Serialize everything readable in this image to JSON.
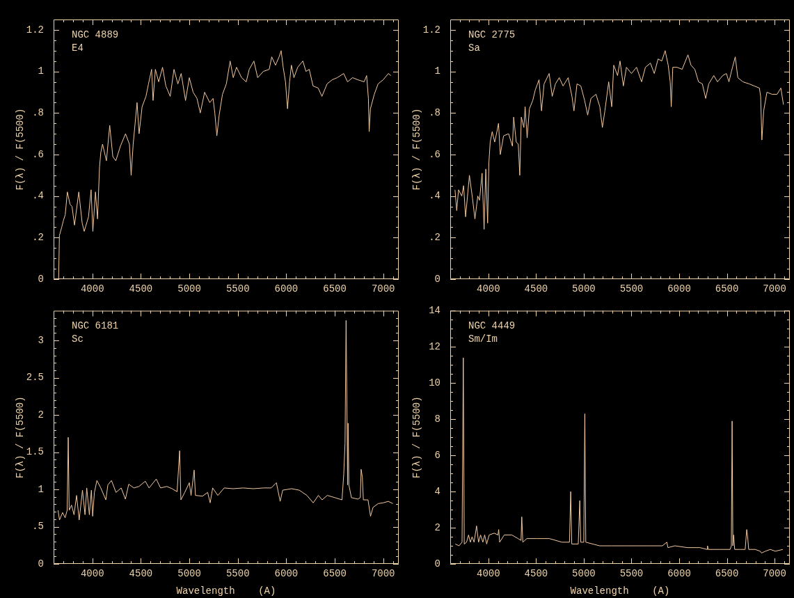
{
  "chart_data": [
    {
      "type": "line",
      "title": "NGC 4889",
      "subtitle": "E4",
      "ylabel": "F(λ) / F(5500)",
      "color": "#f3c9a0",
      "xlim": [
        3600,
        7160
      ],
      "xticks": [
        {
          "value": 3700,
          "label": null
        },
        {
          "value": 3800,
          "label": null
        },
        {
          "value": 3900,
          "label": null
        },
        4000,
        {
          "value": 4100,
          "label": null
        },
        {
          "value": 4200,
          "label": null
        },
        {
          "value": 4300,
          "label": null
        },
        {
          "value": 4400,
          "label": null
        },
        4500,
        {
          "value": 4600,
          "label": null
        },
        {
          "value": 4700,
          "label": null
        },
        {
          "value": 4800,
          "label": null
        },
        {
          "value": 4900,
          "label": null
        },
        5000,
        {
          "value": 5100,
          "label": null
        },
        {
          "value": 5200,
          "label": null
        },
        {
          "value": 5300,
          "label": null
        },
        {
          "value": 5400,
          "label": null
        },
        5500,
        {
          "value": 5600,
          "label": null
        },
        {
          "value": 5700,
          "label": null
        },
        {
          "value": 5800,
          "label": null
        },
        {
          "value": 5900,
          "label": null
        },
        6000,
        {
          "value": 6100,
          "label": null
        },
        {
          "value": 6200,
          "label": null
        },
        {
          "value": 6300,
          "label": null
        },
        {
          "value": 6400,
          "label": null
        },
        6500,
        {
          "value": 6600,
          "label": null
        },
        {
          "value": 6700,
          "label": null
        },
        {
          "value": 6800,
          "label": null
        },
        {
          "value": 6900,
          "label": null
        },
        7000,
        {
          "value": 7100,
          "label": null
        }
      ],
      "ylim": [
        0,
        1.25
      ],
      "yticks": [
        0,
        {
          "value": 0.05,
          "label": null
        },
        {
          "value": 0.1,
          "label": null
        },
        {
          "value": 0.15,
          "label": null
        },
        {
          "value": 0.2,
          "label": ".2"
        },
        {
          "value": 0.25,
          "label": null
        },
        {
          "value": 0.3,
          "label": null
        },
        {
          "value": 0.35,
          "label": null
        },
        {
          "value": 0.4,
          "label": ".4"
        },
        {
          "value": 0.45,
          "label": null
        },
        {
          "value": 0.5,
          "label": null
        },
        {
          "value": 0.55,
          "label": null
        },
        {
          "value": 0.6,
          "label": ".6"
        },
        {
          "value": 0.65,
          "label": null
        },
        {
          "value": 0.7,
          "label": null
        },
        {
          "value": 0.75,
          "label": null
        },
        {
          "value": 0.8,
          "label": ".8"
        },
        {
          "value": 0.85,
          "label": null
        },
        {
          "value": 0.9,
          "label": null
        },
        {
          "value": 0.95,
          "label": null
        },
        1,
        {
          "value": 1.05,
          "label": null
        },
        {
          "value": 1.1,
          "label": null
        },
        {
          "value": 1.15,
          "label": null
        },
        1.2
      ],
      "x": [
        3652,
        3660,
        3684,
        3700,
        3720,
        3742,
        3770,
        3790,
        3816,
        3860,
        3895,
        3916,
        3960,
        3987,
        4005,
        4032,
        4053,
        4074,
        4087,
        4105,
        4145,
        4179,
        4211,
        4242,
        4289,
        4342,
        4382,
        4400,
        4421,
        4461,
        4482,
        4513,
        4553,
        4579,
        4611,
        4626,
        4650,
        4684,
        4724,
        4758,
        4803,
        4842,
        4882,
        4916,
        4961,
        5000,
        5039,
        5079,
        5113,
        5158,
        5211,
        5245,
        5263,
        5284,
        5308,
        5342,
        5382,
        5421,
        5453,
        5487,
        5539,
        5587,
        5618,
        5666,
        5705,
        5763,
        5824,
        5850,
        5889,
        5926,
        5947,
        5968,
        5992,
        6013,
        6034,
        6053,
        6079,
        6118,
        6171,
        6203,
        6237,
        6276,
        6329,
        6368,
        6421,
        6474,
        6526,
        6592,
        6632,
        6684,
        6737,
        6803,
        6829,
        6847,
        6855,
        6868,
        6908,
        6947,
        7000,
        7053,
        7079
      ],
      "values": [
        0,
        0.21,
        0.25,
        0.28,
        0.31,
        0.42,
        0.36,
        0.35,
        0.26,
        0.42,
        0.27,
        0.23,
        0.3,
        0.43,
        0.23,
        0.42,
        0.29,
        0.54,
        0.61,
        0.65,
        0.57,
        0.74,
        0.59,
        0.57,
        0.64,
        0.7,
        0.65,
        0.5,
        0.65,
        0.85,
        0.7,
        0.83,
        0.88,
        0.94,
        1.01,
        0.86,
        1.01,
        0.95,
        1.02,
        0.93,
        0.88,
        1.01,
        0.94,
        0.99,
        0.86,
        0.97,
        0.9,
        0.87,
        0.8,
        0.9,
        0.85,
        0.87,
        0.8,
        0.69,
        0.79,
        0.89,
        0.94,
        1.05,
        0.97,
        1.02,
        0.97,
        0.95,
        1.01,
        1.05,
        0.97,
        1.0,
        1.01,
        1.07,
        1.03,
        1.07,
        1.1,
        1.02,
        0.95,
        0.82,
        0.95,
        1.03,
        0.97,
        1.02,
        1.05,
        1.0,
        1.01,
        0.93,
        0.92,
        0.88,
        0.94,
        0.96,
        0.97,
        0.99,
        0.95,
        0.97,
        0.96,
        0.95,
        0.98,
        0.87,
        0.71,
        0.82,
        0.89,
        0.94,
        0.96,
        0.99,
        0.98
      ]
    },
    {
      "type": "line",
      "title": "NGC 2775",
      "subtitle": "Sa",
      "ylabel": "F(λ) / F(5500)",
      "color": "#f3c9a0",
      "xlim": [
        3600,
        7160
      ],
      "xticks": [
        {
          "value": 3700,
          "label": null
        },
        {
          "value": 3800,
          "label": null
        },
        {
          "value": 3900,
          "label": null
        },
        4000,
        {
          "value": 4100,
          "label": null
        },
        {
          "value": 4200,
          "label": null
        },
        {
          "value": 4300,
          "label": null
        },
        {
          "value": 4400,
          "label": null
        },
        4500,
        {
          "value": 4600,
          "label": null
        },
        {
          "value": 4700,
          "label": null
        },
        {
          "value": 4800,
          "label": null
        },
        {
          "value": 4900,
          "label": null
        },
        5000,
        {
          "value": 5100,
          "label": null
        },
        {
          "value": 5200,
          "label": null
        },
        {
          "value": 5300,
          "label": null
        },
        {
          "value": 5400,
          "label": null
        },
        5500,
        {
          "value": 5600,
          "label": null
        },
        {
          "value": 5700,
          "label": null
        },
        {
          "value": 5800,
          "label": null
        },
        {
          "value": 5900,
          "label": null
        },
        6000,
        {
          "value": 6100,
          "label": null
        },
        {
          "value": 6200,
          "label": null
        },
        {
          "value": 6300,
          "label": null
        },
        {
          "value": 6400,
          "label": null
        },
        6500,
        {
          "value": 6600,
          "label": null
        },
        {
          "value": 6700,
          "label": null
        },
        {
          "value": 6800,
          "label": null
        },
        {
          "value": 6900,
          "label": null
        },
        7000,
        {
          "value": 7100,
          "label": null
        }
      ],
      "ylim": [
        0,
        1.25
      ],
      "yticks": [
        0,
        {
          "value": 0.05,
          "label": null
        },
        {
          "value": 0.1,
          "label": null
        },
        {
          "value": 0.15,
          "label": null
        },
        {
          "value": 0.2,
          "label": ".2"
        },
        {
          "value": 0.25,
          "label": null
        },
        {
          "value": 0.3,
          "label": null
        },
        {
          "value": 0.35,
          "label": null
        },
        {
          "value": 0.4,
          "label": ".4"
        },
        {
          "value": 0.45,
          "label": null
        },
        {
          "value": 0.5,
          "label": null
        },
        {
          "value": 0.55,
          "label": null
        },
        {
          "value": 0.6,
          "label": ".6"
        },
        {
          "value": 0.65,
          "label": null
        },
        {
          "value": 0.7,
          "label": null
        },
        {
          "value": 0.75,
          "label": null
        },
        {
          "value": 0.8,
          "label": ".8"
        },
        {
          "value": 0.85,
          "label": null
        },
        {
          "value": 0.9,
          "label": null
        },
        {
          "value": 0.95,
          "label": null
        },
        1,
        {
          "value": 1.05,
          "label": null
        },
        {
          "value": 1.1,
          "label": null
        },
        {
          "value": 1.15,
          "label": null
        },
        1.2
      ],
      "x": [
        3650,
        3668,
        3687,
        3721,
        3740,
        3761,
        3801,
        3833,
        3859,
        3889,
        3907,
        3934,
        3955,
        3973,
        3992,
        4005,
        4019,
        4040,
        4066,
        4085,
        4106,
        4125,
        4159,
        4212,
        4252,
        4265,
        4292,
        4313,
        4329,
        4345,
        4372,
        4385,
        4406,
        4430,
        4465,
        4491,
        4531,
        4557,
        4584,
        4637,
        4669,
        4703,
        4743,
        4783,
        4836,
        4876,
        4897,
        4929,
        4969,
        5009,
        5041,
        5075,
        5128,
        5168,
        5195,
        5221,
        5261,
        5293,
        5314,
        5354,
        5380,
        5415,
        5447,
        5500,
        5553,
        5606,
        5646,
        5699,
        5739,
        5779,
        5818,
        5853,
        5885,
        5906,
        5917,
        5933,
        5978,
        6031,
        6092,
        6124,
        6164,
        6203,
        6243,
        6278,
        6310,
        6363,
        6402,
        6456,
        6495,
        6522,
        6548,
        6588,
        6615,
        6668,
        6734,
        6787,
        6841,
        6854,
        6867,
        6886,
        6920,
        6973,
        7026,
        7066,
        7093
      ],
      "values": [
        0.43,
        0.33,
        0.43,
        0.4,
        0.45,
        0.3,
        0.5,
        0.39,
        0.29,
        0.4,
        0.38,
        0.51,
        0.24,
        0.53,
        0.27,
        0.56,
        0.66,
        0.71,
        0.66,
        0.7,
        0.75,
        0.6,
        0.69,
        0.7,
        0.64,
        0.78,
        0.66,
        0.65,
        0.5,
        0.78,
        0.73,
        0.83,
        0.68,
        0.82,
        0.86,
        0.91,
        0.96,
        0.81,
        0.94,
        0.99,
        0.88,
        0.94,
        0.97,
        0.93,
        0.97,
        0.88,
        0.81,
        0.94,
        0.93,
        0.86,
        0.79,
        0.87,
        0.89,
        0.83,
        0.73,
        0.81,
        0.95,
        0.83,
        1.03,
        0.98,
        1.05,
        0.93,
        1.02,
        0.99,
        1.02,
        0.95,
        1.02,
        1.04,
        0.99,
        1.06,
        1.05,
        1.1,
        1.03,
        0.95,
        0.83,
        1.02,
        1.02,
        1.01,
        1.08,
        1.03,
        1.01,
        0.95,
        0.94,
        0.87,
        0.94,
        0.98,
        0.95,
        0.98,
        0.99,
        0.95,
        1.0,
        1.07,
        0.97,
        0.95,
        0.94,
        0.93,
        0.92,
        0.88,
        0.67,
        0.81,
        0.9,
        0.89,
        0.89,
        0.92,
        0.84
      ]
    },
    {
      "type": "line",
      "title": "NGC 6181",
      "subtitle": "Sc",
      "xlabel": "Wavelength    (A)",
      "ylabel": "F(λ) / F(5500)",
      "color": "#f3c9a0",
      "xlim": [
        3600,
        7160
      ],
      "xticks": [
        {
          "value": 3700,
          "label": null
        },
        {
          "value": 3800,
          "label": null
        },
        {
          "value": 3900,
          "label": null
        },
        4000,
        {
          "value": 4100,
          "label": null
        },
        {
          "value": 4200,
          "label": null
        },
        {
          "value": 4300,
          "label": null
        },
        {
          "value": 4400,
          "label": null
        },
        4500,
        {
          "value": 4600,
          "label": null
        },
        {
          "value": 4700,
          "label": null
        },
        {
          "value": 4800,
          "label": null
        },
        {
          "value": 4900,
          "label": null
        },
        5000,
        {
          "value": 5100,
          "label": null
        },
        {
          "value": 5200,
          "label": null
        },
        {
          "value": 5300,
          "label": null
        },
        {
          "value": 5400,
          "label": null
        },
        5500,
        {
          "value": 5600,
          "label": null
        },
        {
          "value": 5700,
          "label": null
        },
        {
          "value": 5800,
          "label": null
        },
        {
          "value": 5900,
          "label": null
        },
        6000,
        {
          "value": 6100,
          "label": null
        },
        {
          "value": 6200,
          "label": null
        },
        {
          "value": 6300,
          "label": null
        },
        {
          "value": 6400,
          "label": null
        },
        6500,
        {
          "value": 6600,
          "label": null
        },
        {
          "value": 6700,
          "label": null
        },
        {
          "value": 6800,
          "label": null
        },
        {
          "value": 6900,
          "label": null
        },
        7000,
        {
          "value": 7100,
          "label": null
        }
      ],
      "ylim": [
        0,
        3.4
      ],
      "yticks": [
        0,
        {
          "value": 0.1,
          "label": null
        },
        {
          "value": 0.2,
          "label": null
        },
        {
          "value": 0.3,
          "label": null
        },
        {
          "value": 0.4,
          "label": null
        },
        {
          "value": 0.5,
          "label": ".5"
        },
        {
          "value": 0.6,
          "label": null
        },
        {
          "value": 0.7,
          "label": null
        },
        {
          "value": 0.8,
          "label": null
        },
        {
          "value": 0.9,
          "label": null
        },
        1,
        {
          "value": 1.1,
          "label": null
        },
        {
          "value": 1.2,
          "label": null
        },
        {
          "value": 1.3,
          "label": null
        },
        {
          "value": 1.4,
          "label": null
        },
        1.5,
        {
          "value": 1.6,
          "label": null
        },
        {
          "value": 1.7,
          "label": null
        },
        {
          "value": 1.8,
          "label": null
        },
        {
          "value": 1.9,
          "label": null
        },
        2,
        {
          "value": 2.1,
          "label": null
        },
        {
          "value": 2.2,
          "label": null
        },
        {
          "value": 2.3,
          "label": null
        },
        {
          "value": 2.4,
          "label": null
        },
        2.5,
        {
          "value": 2.6,
          "label": null
        },
        {
          "value": 2.7,
          "label": null
        },
        {
          "value": 2.8,
          "label": null
        },
        {
          "value": 2.9,
          "label": null
        },
        3,
        {
          "value": 3.1,
          "label": null
        },
        {
          "value": 3.2,
          "label": null
        },
        {
          "value": 3.3,
          "label": null
        }
      ],
      "x": [
        3646,
        3661,
        3693,
        3719,
        3740,
        3751,
        3761,
        3785,
        3811,
        3837,
        3864,
        3898,
        3924,
        3942,
        3969,
        3990,
        4003,
        4021,
        4047,
        4087,
        4139,
        4160,
        4197,
        4244,
        4297,
        4341,
        4375,
        4428,
        4480,
        4546,
        4585,
        4659,
        4703,
        4769,
        4822,
        4874,
        4900,
        4913,
        4953,
        5000,
        5018,
        5050,
        5063,
        5136,
        5189,
        5215,
        5241,
        5294,
        5360,
        5451,
        5556,
        5661,
        5766,
        5845,
        5898,
        5937,
        5963,
        6055,
        6134,
        6213,
        6278,
        6331,
        6370,
        6423,
        6501,
        6575,
        6593,
        6606,
        6617,
        6627,
        6633,
        6638,
        6646,
        6672,
        6738,
        6764,
        6772,
        6785,
        6795,
        6843,
        6869,
        6895,
        6948,
        7000,
        7052,
        7100
      ],
      "values": [
        0.72,
        0.59,
        0.69,
        0.62,
        0.72,
        1.7,
        0.72,
        0.79,
        0.66,
        0.92,
        0.59,
        0.99,
        0.66,
        1.02,
        0.66,
        0.99,
        0.64,
        0.96,
        1.12,
        1.02,
        0.86,
        1.06,
        1.12,
        0.96,
        1.02,
        0.87,
        1.07,
        1.02,
        1.04,
        1.11,
        1.02,
        1.14,
        1.02,
        1.04,
        1.01,
        0.97,
        1.52,
        0.86,
        0.96,
        1.09,
        0.92,
        1.26,
        0.92,
        0.91,
        0.96,
        0.82,
        1.02,
        0.92,
        1.02,
        1.01,
        1.02,
        1.01,
        1.02,
        1.02,
        1.09,
        0.84,
        0.99,
        1.01,
        0.99,
        0.92,
        0.82,
        0.92,
        0.86,
        0.92,
        0.89,
        0.86,
        1.21,
        1.62,
        3.27,
        1.92,
        1.06,
        1.89,
        1.06,
        0.89,
        0.87,
        0.89,
        1.27,
        1.16,
        0.86,
        0.86,
        0.64,
        0.76,
        0.81,
        0.82,
        0.84,
        0.81
      ]
    },
    {
      "type": "line",
      "title": "NGC 4449",
      "subtitle": "Sm/Im",
      "xlabel": "Wavelength    (A)",
      "ylabel": "F(λ) / F(5500)",
      "color": "#f3c9a0",
      "xlim": [
        3600,
        7160
      ],
      "xticks": [
        {
          "value": 3700,
          "label": null
        },
        {
          "value": 3800,
          "label": null
        },
        {
          "value": 3900,
          "label": null
        },
        4000,
        {
          "value": 4100,
          "label": null
        },
        {
          "value": 4200,
          "label": null
        },
        {
          "value": 4300,
          "label": null
        },
        {
          "value": 4400,
          "label": null
        },
        4500,
        {
          "value": 4600,
          "label": null
        },
        {
          "value": 4700,
          "label": null
        },
        {
          "value": 4800,
          "label": null
        },
        {
          "value": 4900,
          "label": null
        },
        5000,
        {
          "value": 5100,
          "label": null
        },
        {
          "value": 5200,
          "label": null
        },
        {
          "value": 5300,
          "label": null
        },
        {
          "value": 5400,
          "label": null
        },
        5500,
        {
          "value": 5600,
          "label": null
        },
        {
          "value": 5700,
          "label": null
        },
        {
          "value": 5800,
          "label": null
        },
        {
          "value": 5900,
          "label": null
        },
        6000,
        {
          "value": 6100,
          "label": null
        },
        {
          "value": 6200,
          "label": null
        },
        {
          "value": 6300,
          "label": null
        },
        {
          "value": 6400,
          "label": null
        },
        6500,
        {
          "value": 6600,
          "label": null
        },
        {
          "value": 6700,
          "label": null
        },
        {
          "value": 6800,
          "label": null
        },
        {
          "value": 6900,
          "label": null
        },
        7000,
        {
          "value": 7100,
          "label": null
        }
      ],
      "ylim": [
        0,
        14
      ],
      "yticks": [
        0,
        {
          "value": 0.5,
          "label": null
        },
        {
          "value": 1,
          "label": null
        },
        {
          "value": 1.5,
          "label": null
        },
        2,
        {
          "value": 2.5,
          "label": null
        },
        {
          "value": 3,
          "label": null
        },
        {
          "value": 3.5,
          "label": null
        },
        4,
        {
          "value": 4.5,
          "label": null
        },
        {
          "value": 5,
          "label": null
        },
        {
          "value": 5.5,
          "label": null
        },
        6,
        {
          "value": 6.5,
          "label": null
        },
        {
          "value": 7,
          "label": null
        },
        {
          "value": 7.5,
          "label": null
        },
        8,
        {
          "value": 8.5,
          "label": null
        },
        {
          "value": 9,
          "label": null
        },
        {
          "value": 9.5,
          "label": null
        },
        10,
        {
          "value": 10.5,
          "label": null
        },
        {
          "value": 11,
          "label": null
        },
        {
          "value": 11.5,
          "label": null
        },
        12,
        {
          "value": 12.5,
          "label": null
        },
        {
          "value": 13,
          "label": null
        },
        {
          "value": 13.5,
          "label": null
        },
        14
      ],
      "x": [
        3653,
        3692,
        3724,
        3737,
        3747,
        3771,
        3792,
        3811,
        3829,
        3850,
        3876,
        3897,
        3918,
        3942,
        3961,
        3982,
        4008,
        4061,
        4100,
        4108,
        4118,
        4166,
        4245,
        4311,
        4342,
        4350,
        4361,
        4403,
        4508,
        4639,
        4771,
        4850,
        4863,
        4874,
        4942,
        4958,
        4968,
        5000,
        5011,
        5021,
        5166,
        5297,
        5429,
        5561,
        5692,
        5824,
        5871,
        5882,
        5955,
        6087,
        6218,
        6292,
        6297,
        6305,
        6429,
        6534,
        6547,
        6555,
        6563,
        6571,
        6582,
        6639,
        6692,
        6708,
        6718,
        6729,
        6797,
        6850,
        6863,
        6903,
        6955,
        7008,
        7087
      ],
      "values": [
        1.1,
        1.0,
        1.2,
        11.4,
        1.1,
        1.2,
        1.6,
        1.2,
        1.5,
        1.2,
        2.1,
        1.2,
        1.6,
        1.2,
        1.6,
        1.1,
        1.6,
        1.7,
        1.6,
        1.9,
        1.2,
        1.6,
        1.6,
        1.4,
        1.3,
        2.6,
        1.2,
        1.4,
        1.4,
        1.4,
        1.2,
        1.2,
        4.0,
        1.1,
        1.1,
        3.5,
        1.2,
        1.2,
        8.3,
        1.2,
        1.0,
        1.0,
        1.0,
        1.0,
        1.0,
        1.0,
        1.2,
        0.9,
        1.0,
        0.9,
        0.9,
        0.8,
        1.0,
        0.8,
        0.8,
        0.8,
        1.0,
        7.9,
        1.0,
        1.6,
        0.8,
        0.8,
        0.8,
        1.9,
        1.5,
        0.8,
        0.8,
        0.7,
        0.6,
        0.7,
        0.8,
        0.7,
        0.8
      ]
    }
  ]
}
